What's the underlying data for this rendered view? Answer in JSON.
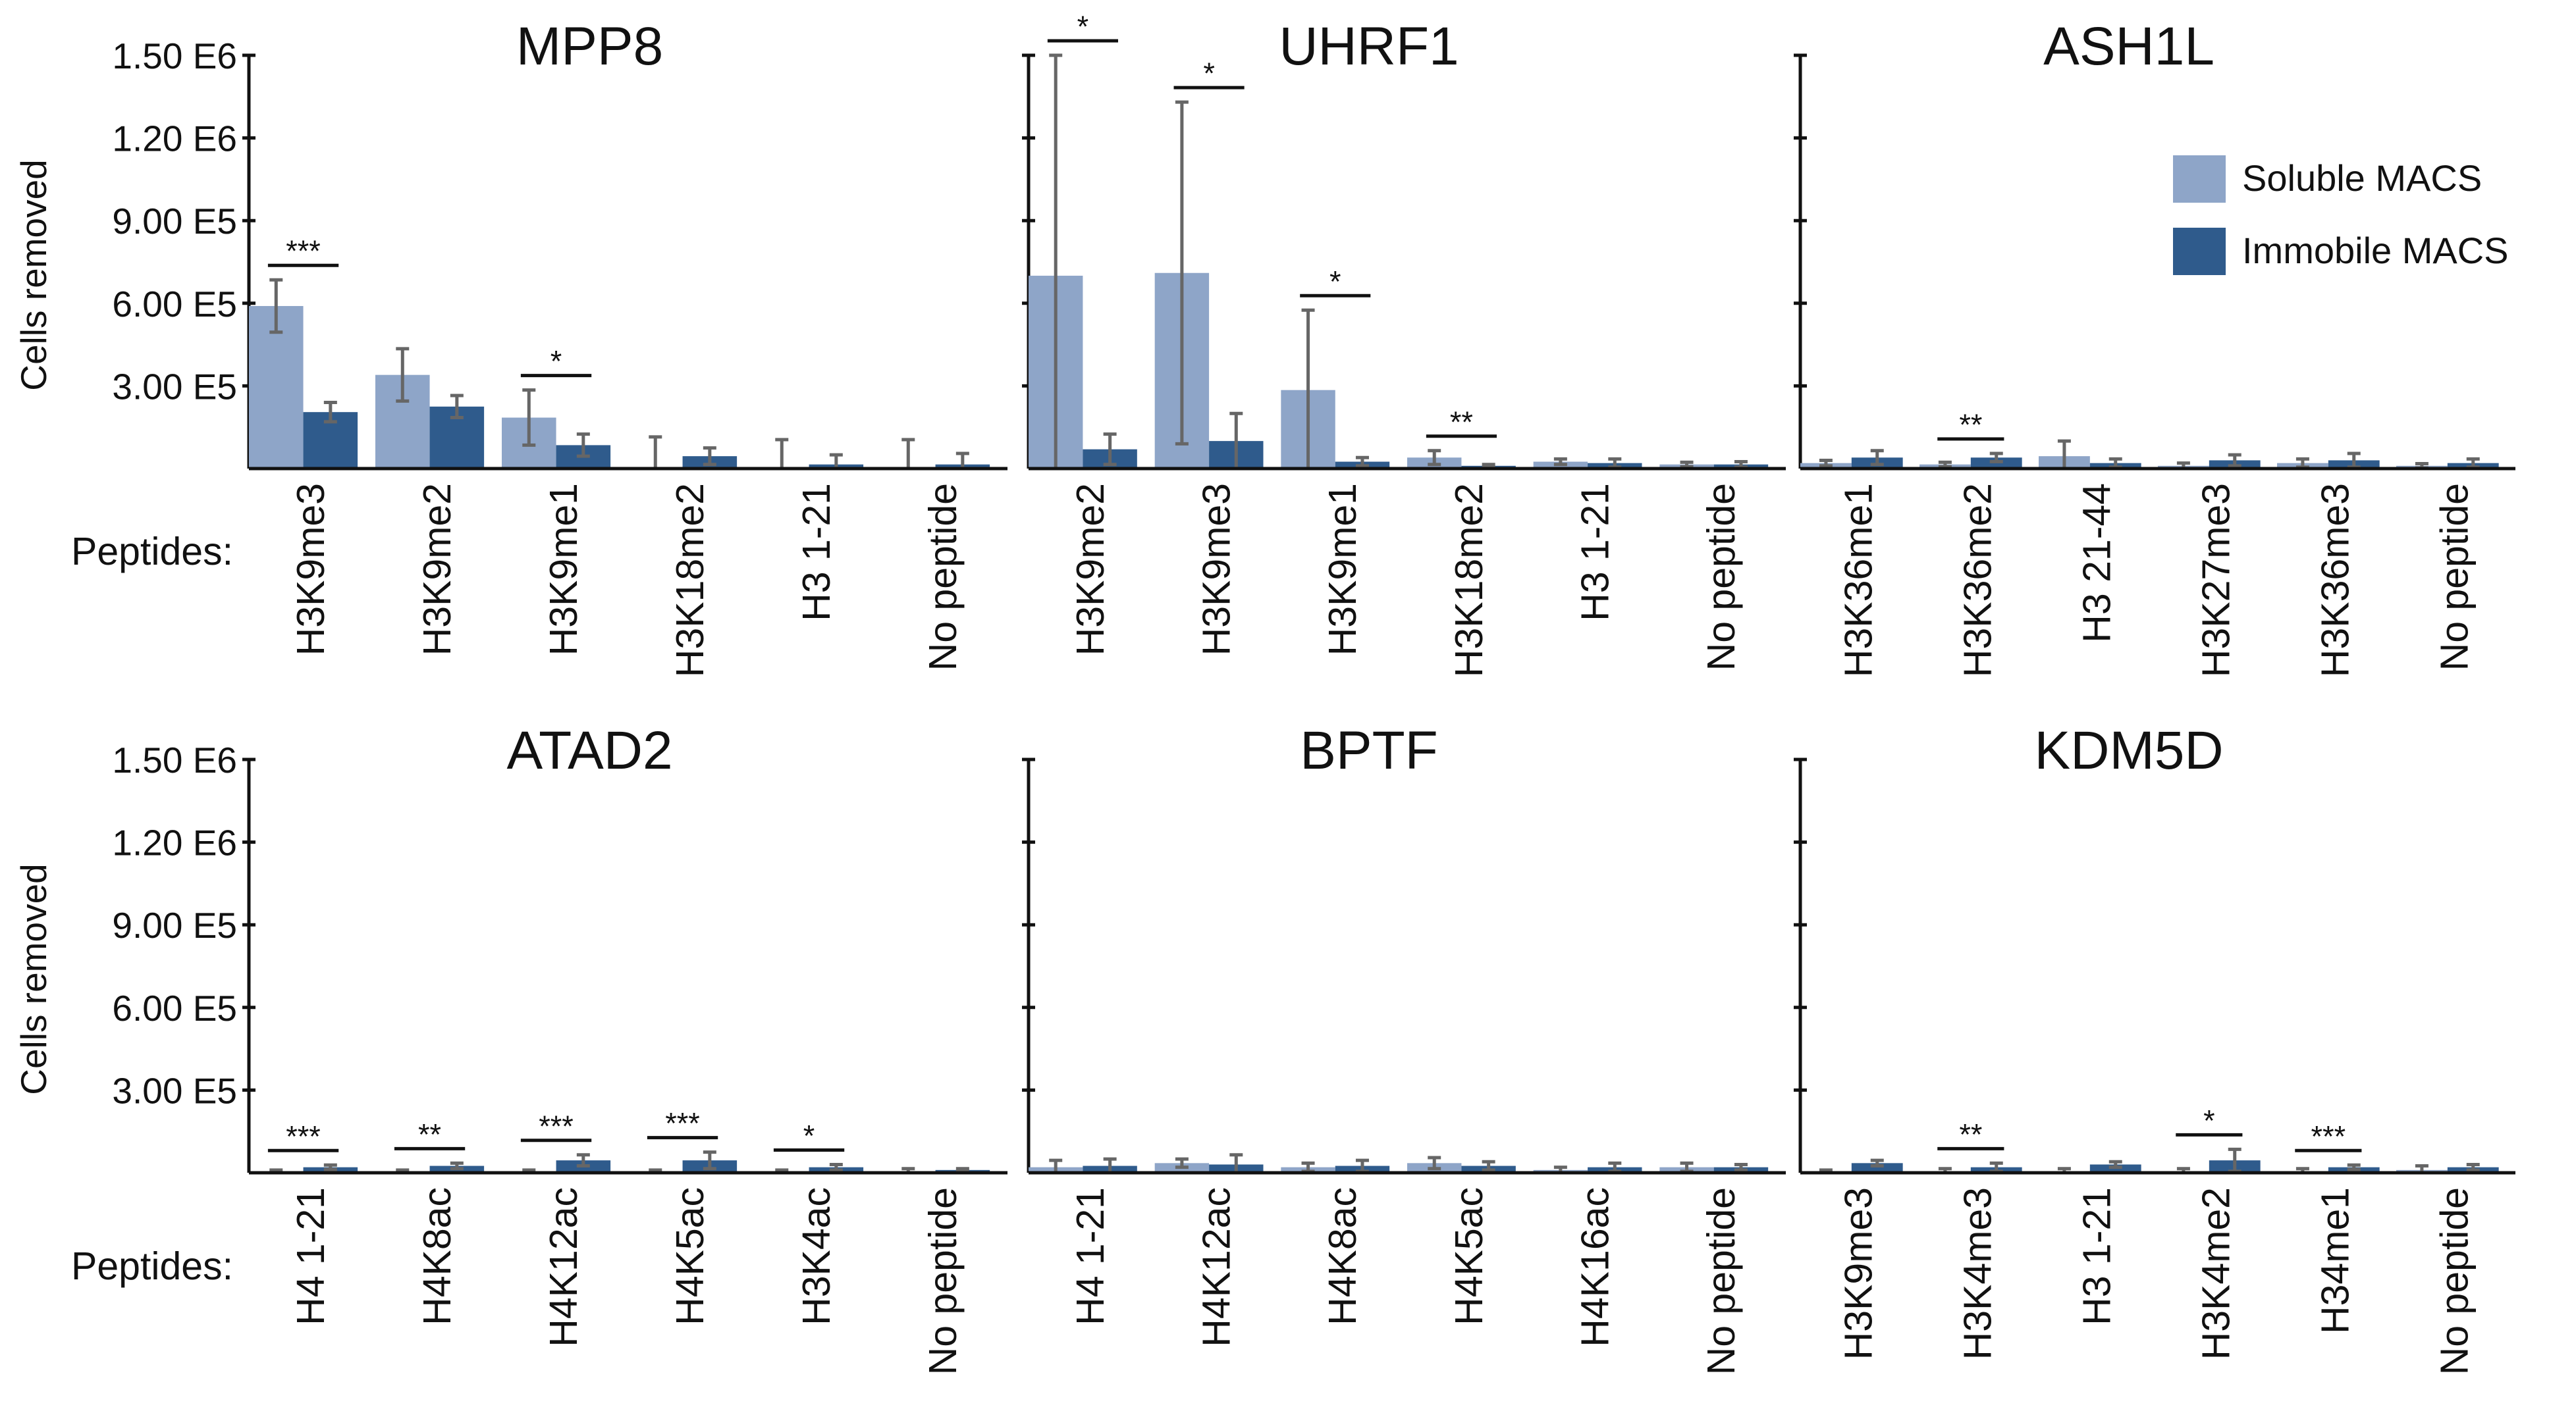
{
  "chart_data": {
    "type": "bar",
    "ylabel": "Cells removed",
    "peptides_label": "Peptides:",
    "ylim": [
      0,
      1500000
    ],
    "yticks": [
      {
        "value": 300000,
        "label": "3.00 E5"
      },
      {
        "value": 600000,
        "label": "6.00 E5"
      },
      {
        "value": 900000,
        "label": "9.00 E5"
      },
      {
        "value": 1200000,
        "label": "1.20 E6"
      },
      {
        "value": 1500000,
        "label": "1.50 E6"
      }
    ],
    "legend": [
      {
        "name": "Soluble MACS",
        "color": "#8ea5c8"
      },
      {
        "name": "Immobile MACS",
        "color": "#2f5b8c"
      }
    ],
    "panels": [
      {
        "title": "MPP8",
        "categories": [
          "H3K9me3",
          "H3K9me2",
          "H3K9me1",
          "H3K18me2",
          "H3 1-21",
          "No peptide"
        ],
        "series": [
          {
            "name": "Soluble MACS",
            "values": [
              590000,
              340000,
              185000,
              5000,
              5000,
              5000
            ],
            "errors": [
              95000,
              95000,
              100000,
              110000,
              100000,
              100000
            ]
          },
          {
            "name": "Immobile MACS",
            "values": [
              205000,
              225000,
              85000,
              45000,
              15000,
              15000
            ],
            "errors": [
              35000,
              40000,
              40000,
              30000,
              35000,
              40000
            ]
          }
        ],
        "significance": [
          {
            "index": 0,
            "label": "***"
          },
          {
            "index": 2,
            "label": "*"
          }
        ]
      },
      {
        "title": "UHRF1",
        "categories": [
          "H3K9me2",
          "H3K9me3",
          "H3K9me1",
          "H3K18me2",
          "H3 1-21",
          "No peptide"
        ],
        "series": [
          {
            "name": "Soluble MACS",
            "values": [
              700000,
              710000,
              285000,
              40000,
              25000,
              15000
            ],
            "errors": [
              800000,
              620000,
              290000,
              25000,
              10000,
              8000
            ]
          },
          {
            "name": "Immobile MACS",
            "values": [
              70000,
              100000,
              25000,
              10000,
              20000,
              15000
            ],
            "errors": [
              55000,
              100000,
              15000,
              5000,
              15000,
              10000
            ]
          }
        ],
        "significance": [
          {
            "index": 0,
            "label": "*"
          },
          {
            "index": 1,
            "label": "*"
          },
          {
            "index": 2,
            "label": "*"
          },
          {
            "index": 3,
            "label": "**"
          }
        ]
      },
      {
        "title": "ASH1L",
        "categories": [
          "H3K36me1",
          "H3K36me2",
          "H3 21-44",
          "H3K27me3",
          "H3K36me3",
          "No peptide"
        ],
        "series": [
          {
            "name": "Soluble MACS",
            "values": [
              20000,
              15000,
              45000,
              10000,
              20000,
              10000
            ],
            "errors": [
              10000,
              8000,
              55000,
              10000,
              15000,
              8000
            ]
          },
          {
            "name": "Immobile MACS",
            "values": [
              40000,
              40000,
              20000,
              30000,
              30000,
              20000
            ],
            "errors": [
              25000,
              15000,
              15000,
              20000,
              25000,
              15000
            ]
          }
        ],
        "significance": [
          {
            "index": 1,
            "label": "**"
          }
        ]
      },
      {
        "title": "ATAD2",
        "categories": [
          "H4 1-21",
          "H4K8ac",
          "H4K12ac",
          "H4K5ac",
          "H3K4ac",
          "No peptide"
        ],
        "series": [
          {
            "name": "Soluble MACS",
            "values": [
              5000,
              5000,
              5000,
              5000,
              5000,
              5000
            ],
            "errors": [
              5000,
              5000,
              5000,
              5000,
              5000,
              10000
            ]
          },
          {
            "name": "Immobile MACS",
            "values": [
              20000,
              25000,
              45000,
              45000,
              20000,
              10000
            ],
            "errors": [
              8000,
              10000,
              20000,
              30000,
              10000,
              5000
            ]
          }
        ],
        "significance": [
          {
            "index": 0,
            "label": "***"
          },
          {
            "index": 1,
            "label": "**"
          },
          {
            "index": 2,
            "label": "***"
          },
          {
            "index": 3,
            "label": "***"
          },
          {
            "index": 4,
            "label": "*"
          }
        ]
      },
      {
        "title": "BPTF",
        "categories": [
          "H4 1-21",
          "H4K12ac",
          "H4K8ac",
          "H4K5ac",
          "H4K16ac",
          "No peptide"
        ],
        "series": [
          {
            "name": "Soluble MACS",
            "values": [
              20000,
              35000,
              20000,
              35000,
              10000,
              20000
            ],
            "errors": [
              25000,
              15000,
              15000,
              20000,
              10000,
              15000
            ]
          },
          {
            "name": "Immobile MACS",
            "values": [
              25000,
              30000,
              25000,
              25000,
              20000,
              20000
            ],
            "errors": [
              25000,
              35000,
              20000,
              15000,
              15000,
              10000
            ]
          }
        ],
        "significance": []
      },
      {
        "title": "KDM5D",
        "categories": [
          "H3K9me3",
          "H3K4me3",
          "H3 1-21",
          "H3K4me2",
          "H34me1",
          "No peptide"
        ],
        "series": [
          {
            "name": "Soluble MACS",
            "values": [
              5000,
              5000,
              5000,
              5000,
              5000,
              10000
            ],
            "errors": [
              5000,
              10000,
              10000,
              10000,
              10000,
              15000
            ]
          },
          {
            "name": "Immobile MACS",
            "values": [
              35000,
              20000,
              30000,
              45000,
              20000,
              20000
            ],
            "errors": [
              10000,
              15000,
              10000,
              40000,
              8000,
              10000
            ]
          }
        ],
        "significance": [
          {
            "index": 1,
            "label": "**"
          },
          {
            "index": 3,
            "label": "*"
          },
          {
            "index": 4,
            "label": "***"
          }
        ]
      }
    ]
  }
}
